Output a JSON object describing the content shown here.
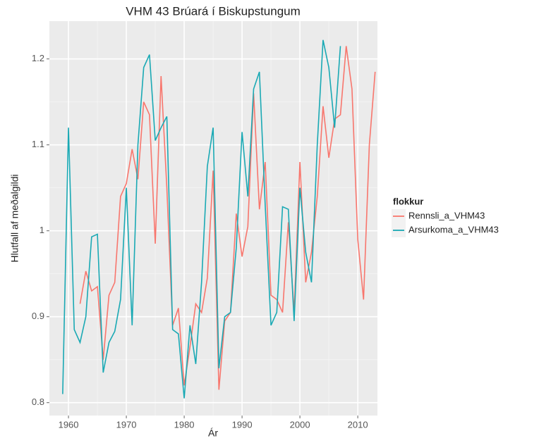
{
  "chart_data": {
    "type": "line",
    "title": "VHM 43 Brúará í Biskupstungum",
    "x_label": "Ár",
    "y_label": "Hlutfall af meðalgildi",
    "legend_title": "flokkur",
    "legend_position": "right",
    "grid": true,
    "background": "#ebebeb",
    "x": [
      1959,
      1960,
      1961,
      1962,
      1963,
      1964,
      1965,
      1966,
      1967,
      1968,
      1969,
      1970,
      1971,
      1972,
      1973,
      1974,
      1975,
      1976,
      1977,
      1978,
      1979,
      1980,
      1981,
      1982,
      1983,
      1984,
      1985,
      1986,
      1987,
      1988,
      1989,
      1990,
      1991,
      1992,
      1993,
      1994,
      1995,
      1996,
      1997,
      1998,
      1999,
      2000,
      2001,
      2002,
      2003,
      2004,
      2005,
      2006,
      2007,
      2008,
      2009,
      2010,
      2011,
      2012,
      2013
    ],
    "series": [
      {
        "name": "Rennsli_a_VHM43",
        "color": "#f8766d",
        "values": [
          null,
          null,
          null,
          0.915,
          0.953,
          0.93,
          0.935,
          0.85,
          0.925,
          0.94,
          1.04,
          1.055,
          1.095,
          1.06,
          1.15,
          1.135,
          0.985,
          1.18,
          1.05,
          0.89,
          0.91,
          0.82,
          0.865,
          0.915,
          0.905,
          0.945,
          1.07,
          0.815,
          0.895,
          0.905,
          1.02,
          0.97,
          1.005,
          1.16,
          1.025,
          1.08,
          0.925,
          0.92,
          0.905,
          1.01,
          0.905,
          1.08,
          0.94,
          0.975,
          1.04,
          1.145,
          1.085,
          1.13,
          1.135,
          1.215,
          1.165,
          0.99,
          0.92,
          1.1,
          1.185
        ]
      },
      {
        "name": "Arsurkoma_a_VHM43",
        "color": "#1aa9b4",
        "values": [
          0.81,
          1.12,
          0.885,
          0.87,
          0.9,
          0.993,
          0.996,
          0.835,
          0.87,
          0.883,
          0.92,
          1.05,
          0.89,
          1.1,
          1.19,
          1.205,
          1.105,
          1.12,
          1.133,
          0.885,
          0.88,
          0.805,
          0.89,
          0.845,
          0.94,
          1.075,
          1.12,
          0.84,
          0.9,
          0.905,
          0.98,
          1.115,
          1.04,
          1.165,
          1.185,
          1.03,
          0.89,
          0.905,
          1.028,
          1.025,
          0.895,
          1.05,
          0.975,
          0.94,
          1.1,
          1.222,
          1.19,
          1.12,
          1.215,
          null,
          null,
          null,
          null,
          null,
          null
        ]
      }
    ],
    "xlim": [
      1956.7,
      2013.4
    ],
    "xticks": [
      1960,
      1970,
      1980,
      1990,
      2000,
      2010
    ],
    "ylim": [
      0.785,
      1.244
    ],
    "yticks": [
      0.8,
      0.9,
      1.0,
      1.1,
      1.2
    ]
  }
}
